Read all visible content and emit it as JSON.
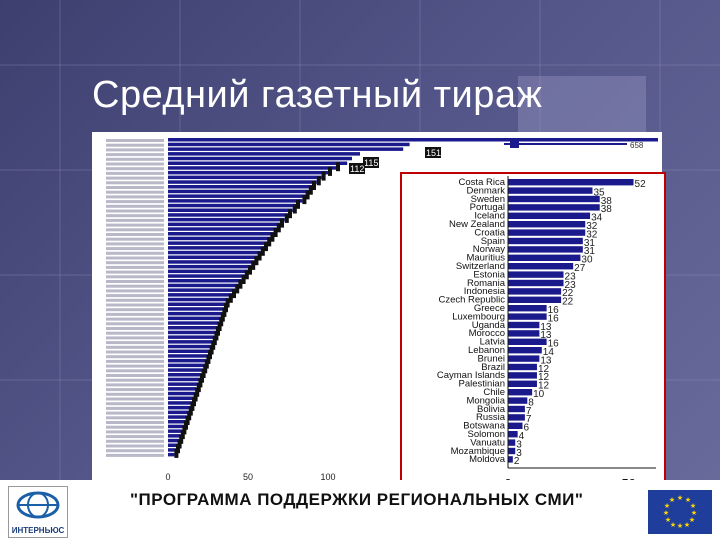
{
  "slide": {
    "title": "Средний газетный тираж",
    "footer": "\"ПРОГРАММА ПОДДЕРЖКИ РЕГИОНАЛЬНЫХ СМИ\"",
    "logo_text": "ИНТЕРНЬЮС",
    "colors": {
      "background": "#4a4c7e",
      "bar": "#1a1a8c",
      "inset_border": "#c00000",
      "footer_text": "#111111"
    }
  },
  "chart_data": [
    {
      "type": "bar",
      "orientation": "horizontal",
      "x_ticks": [
        "0",
        "50",
        "100"
      ],
      "top_value": "658",
      "visible_value_labels": [
        "151",
        "115",
        "112"
      ],
      "values": [
        658,
        151,
        147,
        120,
        115,
        112,
        105,
        100,
        96,
        93,
        90,
        88,
        86,
        84,
        80,
        78,
        75,
        73,
        70,
        68,
        66,
        64,
        62,
        60,
        58,
        56,
        54,
        52,
        50,
        48,
        46,
        44,
        42,
        40,
        38,
        36,
        35,
        34,
        33,
        32,
        31,
        30,
        29,
        28,
        27,
        26,
        25,
        24,
        23,
        22,
        21,
        20,
        19,
        18,
        17,
        16,
        15,
        14,
        13,
        12,
        11,
        10,
        9,
        8,
        7,
        6,
        5,
        4
      ]
    },
    {
      "type": "bar",
      "orientation": "horizontal",
      "categories": [
        "Costa Rica",
        "Denmark",
        "Sweden",
        "Portugal",
        "Iceland",
        "New Zealand",
        "Croatia",
        "Spain",
        "Norway",
        "Mauritius",
        "Switzerland",
        "Estonia",
        "Romania",
        "Indonesia",
        "Czech Republic",
        "Greece",
        "Luxembourg",
        "Uganda",
        "Morocco",
        "Latvia",
        "Lebanon",
        "Brunei",
        "Brazil",
        "Cayman Islands",
        "Palestinian",
        "Chile",
        "Mongolia",
        "Bolivia",
        "Russia",
        "Botswana",
        "Solomon",
        "Vanuatu",
        "Mozambique",
        "Moldova"
      ],
      "values": [
        52,
        35,
        38,
        38,
        34,
        32,
        32,
        31,
        31,
        30,
        27,
        23,
        23,
        22,
        22,
        16,
        16,
        13,
        13,
        16,
        14,
        13,
        12,
        12,
        12,
        10,
        8,
        7,
        7,
        6,
        4,
        3,
        3,
        2
      ],
      "x_ticks": [
        "0",
        "50"
      ],
      "xlim": [
        0,
        58
      ]
    }
  ]
}
